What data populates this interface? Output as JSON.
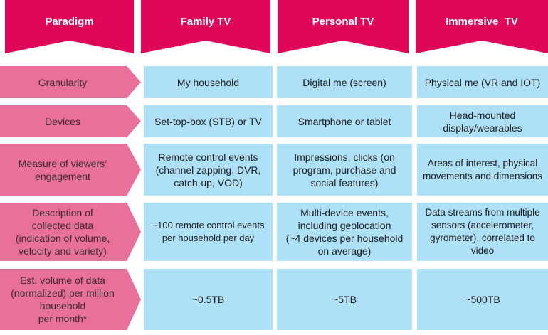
{
  "header": {
    "paradigm": "Paradigm",
    "family": "Family TV",
    "personal": "Personal TV",
    "immersive": "Immersive  TV"
  },
  "rows": [
    {
      "label": "Granularity",
      "family": "My household",
      "personal": "Digital me (screen)",
      "immersive": "Physical me (VR and IOT)"
    },
    {
      "label": "Devices",
      "family": "Set-top-box (STB) or TV",
      "personal": "Smartphone or tablet",
      "immersive": "Head-mounted\ndisplay/wearables"
    },
    {
      "label": "Measure of viewers’\nengagement",
      "family": "Remote control events\n(channel zapping, DVR,\ncatch-up, VOD)",
      "personal": "Impressions, clicks (on\nprogram, purchase and\nsocial features)",
      "immersive": "Areas of interest, physical\nmovements and dimensions"
    },
    {
      "label": "Description of\ncollected data\n(indication of volume,\nvelocity and variety)",
      "family": "~100 remote control events\nper household per day",
      "personal": "Multi-device events,\nincluding geolocation\n(~4 devices per household\non average)",
      "immersive": "Data streams from multiple\nsensors (accelerometer,\ngyrometer), correlated to\nvideo"
    },
    {
      "label": "Est. volume of data\n(normalized) per million\nhousehold\nper month*",
      "family": "~0.5TB",
      "personal": "~5TB",
      "immersive": "~500TB"
    }
  ]
}
